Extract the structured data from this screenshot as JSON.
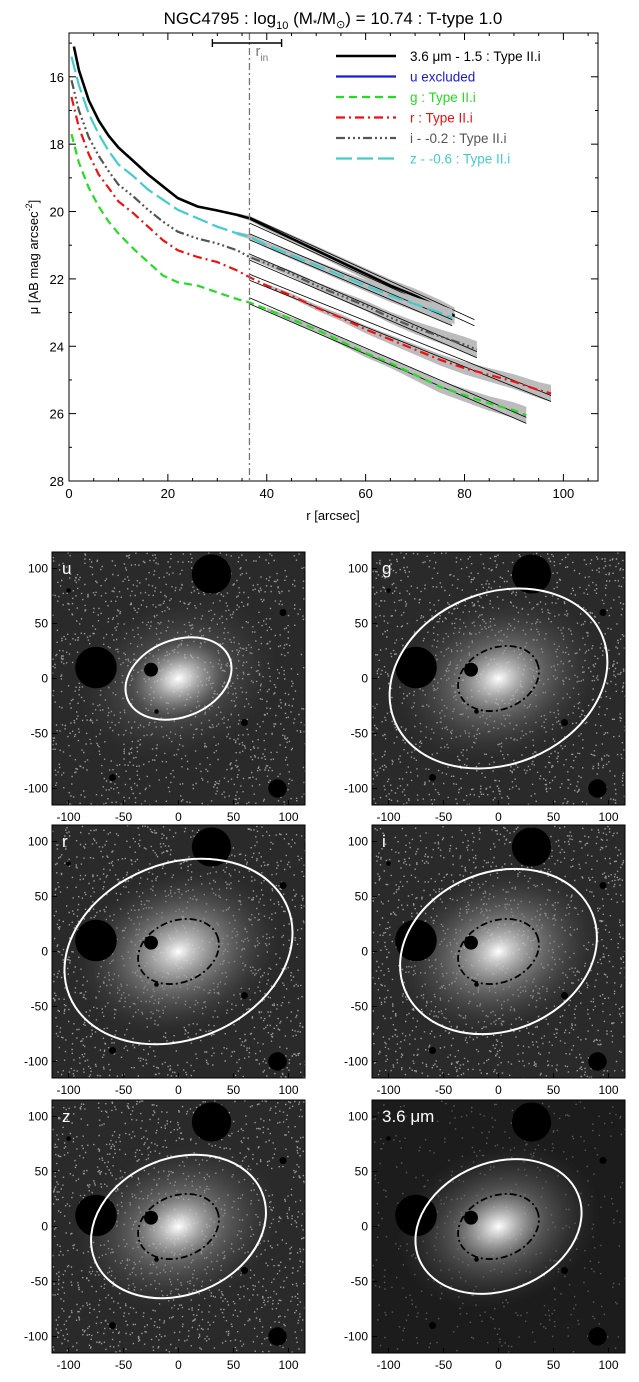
{
  "chart_data": [
    {
      "type": "line",
      "title": "NGC4795 : log10 (M*/M⊙) = 10.74 : T-type 1.0",
      "title_parts": {
        "pre": "NGC4795 : log",
        "sub": "10",
        "mid": " (M",
        "star": "*",
        "slash": "/M",
        "sun": "⊙",
        "post": ") = 10.74 : T-type 1.0"
      },
      "xlabel": "r [arcsec]",
      "ylabel": "μ [AB mag arcsec⁻²]",
      "ylabel_parts": {
        "pre": "μ [AB mag arcsec",
        "sup": "-2",
        "post": "]"
      },
      "xlim": [
        0,
        107
      ],
      "ylim": [
        28,
        14.7
      ],
      "y_inverted": true,
      "x_ticks": [
        0,
        20,
        40,
        60,
        80,
        100
      ],
      "y_ticks": [
        16,
        18,
        20,
        22,
        24,
        26,
        28
      ],
      "r_in": 36.5,
      "r_in_label": {
        "main": "r",
        "sub": "in"
      },
      "r_in_errorbar": [
        29,
        43
      ],
      "legend_position": "top-right",
      "series": [
        {
          "name": "3.6 μm - 1.5 : Type II.i",
          "color": "#000000",
          "dash": "",
          "width": 2.6,
          "x": [
            1,
            2,
            4,
            6,
            8,
            10,
            13,
            16,
            19,
            22,
            26,
            30,
            34,
            36.5,
            40,
            45,
            50,
            55,
            60,
            65,
            70,
            75,
            78
          ],
          "y": [
            15.1,
            15.8,
            16.7,
            17.3,
            17.75,
            18.1,
            18.5,
            18.9,
            19.25,
            19.6,
            19.85,
            19.97,
            20.1,
            20.2,
            20.45,
            20.8,
            21.15,
            21.5,
            21.85,
            22.2,
            22.5,
            22.85,
            23.1
          ],
          "fit": {
            "x": [
              36.5,
              82
            ],
            "y": [
              20.25,
              23.3
            ]
          }
        },
        {
          "name": "u excluded",
          "color": "#1a1adc",
          "dash": "",
          "width": 2.2,
          "x": [],
          "y": []
        },
        {
          "name": "g : Type II.i",
          "color": "#22dd22",
          "dash": "8,5",
          "width": 2.2,
          "x": [
            0.5,
            2,
            4,
            6,
            8,
            10,
            13,
            16,
            19,
            22,
            26,
            30,
            34,
            36.5,
            40,
            45,
            50,
            55,
            60,
            65,
            70,
            75,
            80,
            85,
            90,
            92.5
          ],
          "y": [
            17.7,
            18.55,
            19.3,
            19.85,
            20.3,
            20.65,
            21.1,
            21.5,
            21.9,
            22.1,
            22.2,
            22.4,
            22.6,
            22.7,
            22.9,
            23.2,
            23.5,
            23.85,
            24.2,
            24.5,
            24.85,
            25.2,
            25.45,
            25.7,
            25.9,
            26.05
          ],
          "fit": {
            "x": [
              36.5,
              92.5
            ],
            "y": [
              22.65,
              26.2
            ]
          }
        },
        {
          "name": "r : Type II.i",
          "color": "#ee1111",
          "dash": "9,4,2,4",
          "width": 2.2,
          "x": [
            0.5,
            2,
            4,
            6,
            8,
            10,
            13,
            16,
            19,
            22,
            26,
            30,
            34,
            36.5,
            40,
            45,
            50,
            55,
            60,
            65,
            70,
            75,
            80,
            85,
            90,
            95,
            97.5
          ],
          "y": [
            16.6,
            17.5,
            18.3,
            18.9,
            19.3,
            19.7,
            20.05,
            20.45,
            20.85,
            21.15,
            21.35,
            21.5,
            21.75,
            21.95,
            22.2,
            22.5,
            22.85,
            23.15,
            23.5,
            23.8,
            24.1,
            24.4,
            24.65,
            24.85,
            25.05,
            25.3,
            25.4
          ],
          "fit": {
            "x": [
              36.5,
              97.5
            ],
            "y": [
              21.95,
              25.55
            ]
          }
        },
        {
          "name": "i - -0.2 : Type II.i",
          "color": "#555555",
          "dash": "9,3,2,3,2,3,2,3",
          "width": 2.2,
          "x": [
            0.5,
            2,
            4,
            6,
            8,
            10,
            13,
            16,
            19,
            22,
            26,
            30,
            34,
            36.5,
            40,
            45,
            50,
            55,
            60,
            65,
            70,
            75,
            80,
            82.5
          ],
          "y": [
            16.1,
            17.0,
            17.8,
            18.35,
            18.8,
            19.2,
            19.55,
            19.95,
            20.3,
            20.6,
            20.8,
            20.95,
            21.15,
            21.35,
            21.55,
            21.85,
            22.2,
            22.5,
            22.8,
            23.15,
            23.45,
            23.7,
            23.95,
            24.1
          ],
          "fit": {
            "x": [
              36.5,
              82.5
            ],
            "y": [
              21.35,
              24.25
            ]
          }
        },
        {
          "name": "z - -0.6 : Type II.i",
          "color": "#44cccc",
          "dash": "16,5",
          "width": 2.2,
          "x": [
            0.5,
            2,
            4,
            6,
            8,
            10,
            13,
            16,
            19,
            22,
            26,
            30,
            34,
            36.5,
            40,
            45,
            50,
            55,
            60,
            65,
            70,
            75,
            77.5
          ],
          "y": [
            15.4,
            16.25,
            17.1,
            17.7,
            18.2,
            18.6,
            18.95,
            19.35,
            19.65,
            19.95,
            20.2,
            20.45,
            20.65,
            20.75,
            21.0,
            21.3,
            21.6,
            21.9,
            22.2,
            22.5,
            22.75,
            23.0,
            23.15
          ],
          "fit": {
            "x": [
              36.5,
              77.5
            ],
            "y": [
              20.75,
              23.3
            ]
          }
        }
      ]
    },
    {
      "type": "image-grid",
      "panels": [
        {
          "label": "u",
          "xticks": [
            "-100",
            "-50",
            "0",
            "50",
            "100"
          ],
          "yticks": [
            "100",
            "50",
            "0",
            "-50",
            "-100"
          ],
          "white_ellipse": [
            50,
            35
          ],
          "inner_ellipse": null,
          "glow": 0.35
        },
        {
          "label": "g",
          "xticks": [
            "-100",
            "-50",
            "0",
            "50",
            "100"
          ],
          "yticks": [
            "100",
            "50",
            "0",
            "-50",
            "-100"
          ],
          "white_ellipse": [
            102,
            78
          ],
          "inner_ellipse": [
            38,
            28
          ],
          "glow": 0.55
        },
        {
          "label": "r",
          "xticks": [
            "-100",
            "-50",
            "0",
            "50",
            "100"
          ],
          "yticks": [
            "100",
            "50",
            "0",
            "-50",
            "-100"
          ],
          "white_ellipse": [
            107,
            80
          ],
          "inner_ellipse": [
            38,
            28
          ],
          "glow": 0.7
        },
        {
          "label": "i",
          "xticks": [
            "-100",
            "-50",
            "0",
            "50",
            "100"
          ],
          "yticks": [
            "100",
            "50",
            "0",
            "-50",
            "-100"
          ],
          "white_ellipse": [
            92,
            72
          ],
          "inner_ellipse": [
            38,
            28
          ],
          "glow": 0.65
        },
        {
          "label": "z",
          "xticks": [
            "-100",
            "-50",
            "0",
            "50",
            "100"
          ],
          "yticks": [
            "100",
            "50",
            "0",
            "-50",
            "-100"
          ],
          "white_ellipse": [
            82,
            62
          ],
          "inner_ellipse": [
            38,
            28
          ],
          "glow": 0.55
        },
        {
          "label": "3.6 μm",
          "xticks": [
            "-100",
            "-50",
            "0",
            "50",
            "100"
          ],
          "yticks": [
            "100",
            "50",
            "0",
            "-50",
            "-100"
          ],
          "white_ellipse": [
            78,
            58
          ],
          "inner_ellipse": [
            38,
            28
          ],
          "glow": 0.5,
          "smooth": true
        }
      ]
    }
  ]
}
